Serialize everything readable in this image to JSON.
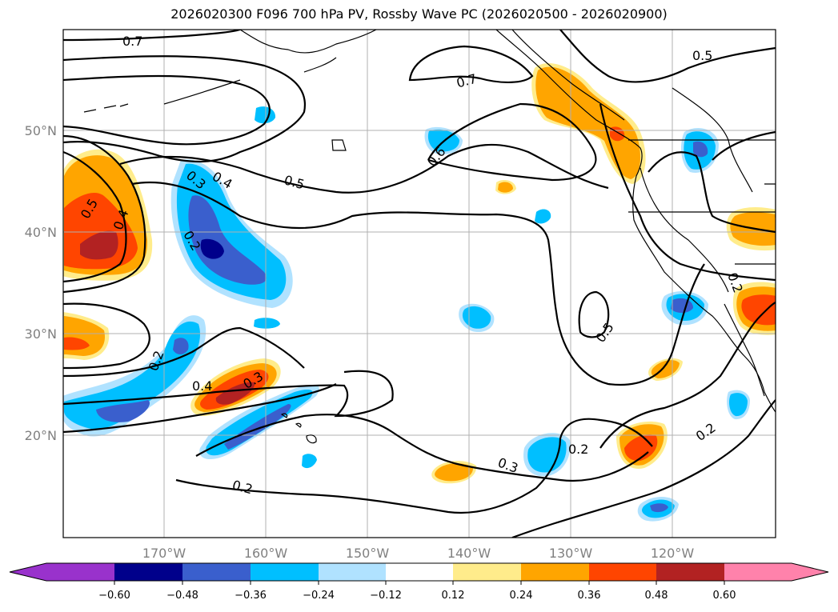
{
  "title": "2026020300 F096 700 hPa PV, Rossby Wave PC (2026020500 - 2026020900)",
  "lat_labels": [
    "50°N",
    "40°N",
    "30°N",
    "20°N"
  ],
  "lon_labels": [
    "170°W",
    "160°W",
    "150°W",
    "140°W",
    "130°W",
    "120°W"
  ],
  "colorbar": {
    "ticks": [
      "−0.60",
      "−0.48",
      "−0.36",
      "−0.24",
      "−0.12",
      "0.12",
      "0.24",
      "0.36",
      "0.48",
      "0.60"
    ],
    "colors": [
      "#9932cc",
      "#00008b",
      "#3a5fcd",
      "#00bfff",
      "#b0e2ff",
      "#ffffff",
      "#ffec8b",
      "#ffa500",
      "#ff4500",
      "#b22222",
      "#ff82ab"
    ]
  },
  "contour_labels": {
    "c1": "0.7",
    "c2": "0.7",
    "c3": "0.5",
    "c4": "0.6",
    "c5": "0.5",
    "c6": "0.4",
    "c7": "0.3",
    "c8": "0.2",
    "c9": "0.5",
    "c10": "0.4",
    "c11": "0.4",
    "c12": "0.3",
    "c13": "0.2",
    "c14": "0.5",
    "c15": "0.2",
    "c16": "0.3",
    "c17": "0.2",
    "c18": "0.2",
    "c19": "0.2"
  },
  "colors": {
    "land_line": "#000000",
    "grid": "#b0b0b0"
  }
}
